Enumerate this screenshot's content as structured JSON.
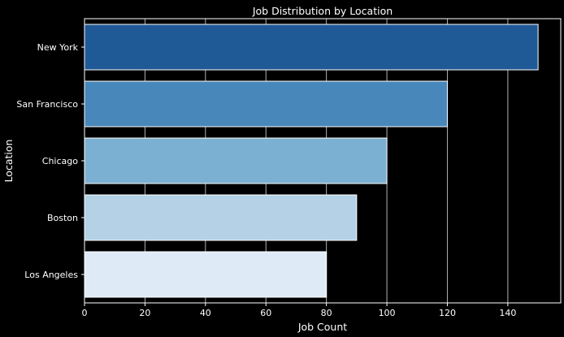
{
  "chart_data": {
    "type": "bar",
    "orientation": "horizontal",
    "title": "Job Distribution by Location",
    "xlabel": "Job Count",
    "ylabel": "Location",
    "categories": [
      "New York",
      "San Francisco",
      "Chicago",
      "Boston",
      "Los Angeles"
    ],
    "values": [
      150,
      120,
      100,
      90,
      80
    ],
    "xlim": [
      0,
      157.5
    ],
    "xticks": [
      0,
      20,
      40,
      60,
      80,
      100,
      120,
      140
    ],
    "grid": true,
    "colors": [
      "#1f5a96",
      "#4787ba",
      "#7cb0d2",
      "#b4d1e6",
      "#deebf7"
    ],
    "background": "#000000",
    "text_color": "#ffffff",
    "grid_color": "#b0b0b0"
  }
}
